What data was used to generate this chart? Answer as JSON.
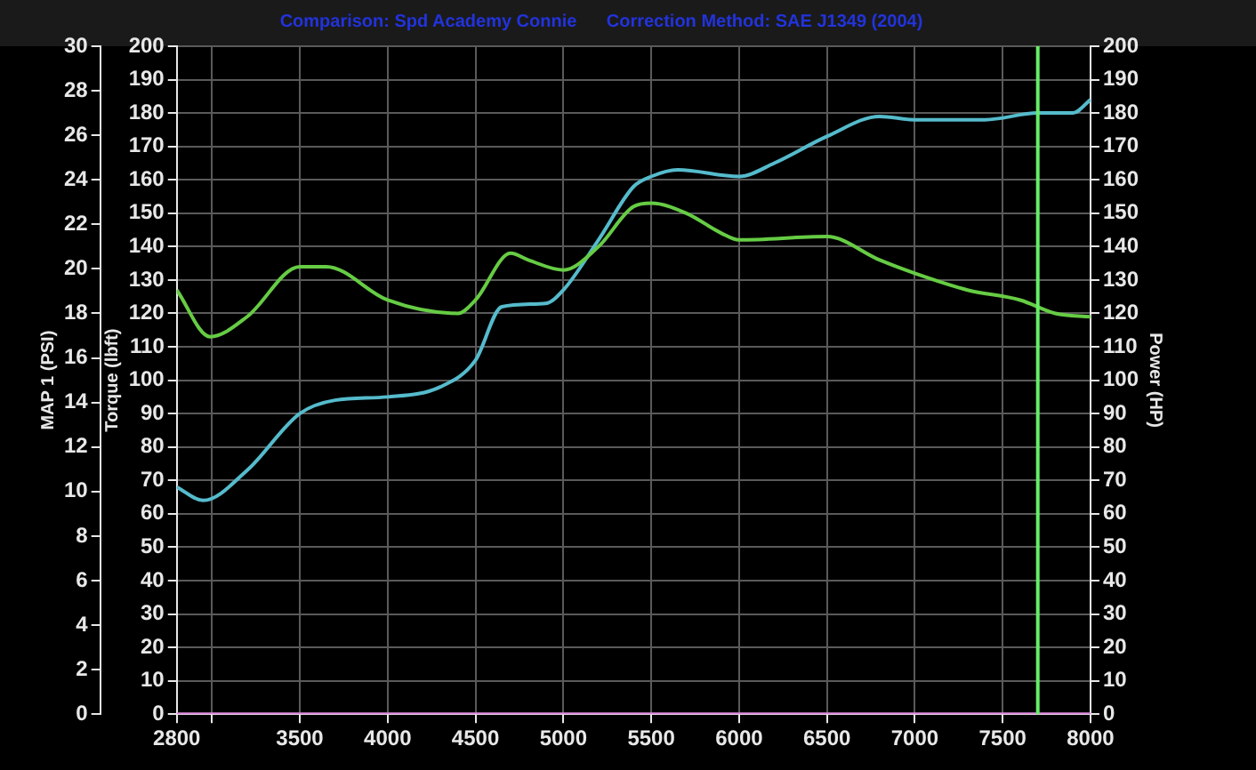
{
  "chart_data": {
    "type": "line",
    "title": "Comparison: Spd Academy Connie      Correction Method: SAE J1349 (2004)",
    "ylabel": "Torque (lbft)",
    "y2label": "Power (HP)",
    "y3label": "MAP 1 (PSI)",
    "xlim": [
      2800,
      8000
    ],
    "xticks": [
      2800,
      {
        "value": 3000,
        "label": null
      },
      3500,
      4000,
      4500,
      5000,
      5500,
      6000,
      6500,
      7000,
      7500,
      8000
    ],
    "ylim": [
      0,
      200
    ],
    "yticks": [
      0,
      10,
      20,
      30,
      40,
      50,
      60,
      70,
      80,
      90,
      100,
      110,
      120,
      130,
      140,
      150,
      160,
      170,
      180,
      190,
      200
    ],
    "y2lim": [
      0,
      200
    ],
    "y2ticks": [
      0,
      10,
      20,
      30,
      40,
      50,
      60,
      70,
      80,
      90,
      100,
      110,
      120,
      130,
      140,
      150,
      160,
      170,
      180,
      190,
      200
    ],
    "y3lim": [
      0,
      30
    ],
    "y3ticks": [
      0,
      2,
      4,
      6,
      8,
      10,
      12,
      14,
      16,
      18,
      20,
      22,
      24,
      26,
      28,
      30
    ],
    "grid": true,
    "marker": "none",
    "line_style": "solid",
    "series": [
      {
        "color": "#66cc44",
        "x": [
          2800,
          2990,
          3200,
          3500,
          3650,
          4000,
          4400,
          4500,
          4700,
          4800,
          5000,
          5200,
          5400,
          5500,
          5700,
          5900,
          6000,
          6500,
          6800,
          7000,
          7300,
          7600,
          7800,
          8000
        ],
        "values": [
          127,
          113,
          119,
          134,
          134,
          124,
          120,
          124,
          138,
          136,
          133,
          140,
          152,
          153,
          150,
          144,
          142,
          143,
          136,
          132,
          127,
          124,
          120,
          119
        ]
      },
      {
        "color": "#55bbcc",
        "axis": "y2",
        "x": [
          2800,
          2950,
          3200,
          3500,
          3700,
          4000,
          4300,
          4500,
          4650,
          4900,
          5000,
          5200,
          5400,
          5500,
          5650,
          6000,
          6200,
          6500,
          6800,
          7000,
          7400,
          7700,
          7900,
          8000
        ],
        "values": [
          68,
          64,
          73,
          90,
          94,
          95,
          98,
          106,
          122,
          123,
          127,
          142,
          158,
          161,
          163,
          161,
          165,
          173,
          179,
          178,
          178,
          180,
          180,
          184
        ]
      },
      {
        "color": "#dd88dd",
        "axis": "y3",
        "x": [
          2800,
          8000
        ],
        "values": [
          0,
          0
        ]
      }
    ],
    "ref_lines": [
      {
        "axis": "x",
        "value": 7700,
        "color": "#66ee66"
      }
    ]
  }
}
